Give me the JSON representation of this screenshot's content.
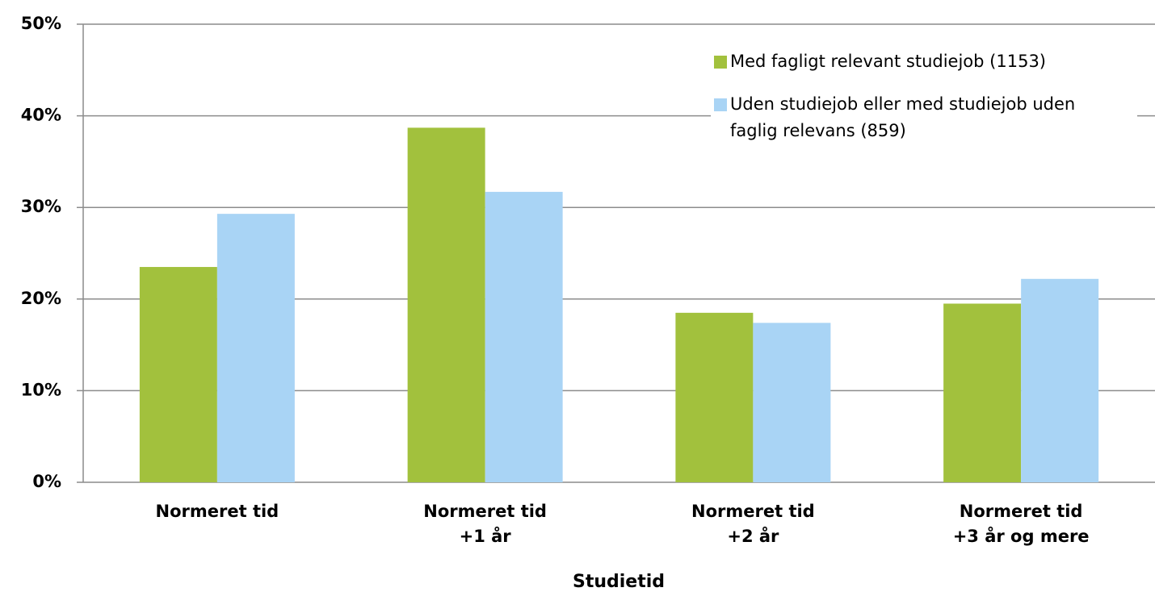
{
  "chart_data": {
    "type": "bar",
    "categories": [
      [
        "Normeret tid"
      ],
      [
        "Normeret tid",
        "+1 år"
      ],
      [
        "Normeret tid",
        "+2 år"
      ],
      [
        "Normeret tid",
        "+3 år og mere"
      ]
    ],
    "series": [
      {
        "name": "Med fagligt relevant studiejob (1153)",
        "color": "#a2c13d",
        "values": [
          23.5,
          38.7,
          18.5,
          19.5
        ]
      },
      {
        "name": "Uden studiejob eller med studiejob uden faglig relevans (859)",
        "color": "#a9d4f5",
        "values": [
          29.3,
          31.7,
          17.4,
          22.2
        ]
      }
    ],
    "x_label": "Studietid",
    "ylim": [
      0,
      50
    ],
    "yticks": [
      {
        "value": 0,
        "label": "0%"
      },
      {
        "value": 10,
        "label": "10%"
      },
      {
        "value": 20,
        "label": "20%"
      },
      {
        "value": 30,
        "label": "30%"
      },
      {
        "value": 40,
        "label": "40%"
      },
      {
        "value": 50,
        "label": "50%"
      }
    ],
    "grid": true,
    "legend": "upper right"
  }
}
